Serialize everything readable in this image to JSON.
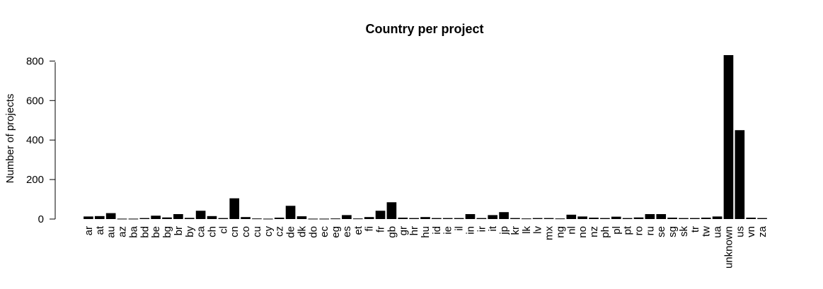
{
  "chart_data": {
    "type": "bar",
    "title": "Country per project",
    "xlabel": "",
    "ylabel": "Number of projects",
    "ylim": [
      0,
      830
    ],
    "yticks": [
      0,
      200,
      400,
      600,
      800
    ],
    "bar_color": "#000000",
    "categories": [
      "ar",
      "at",
      "au",
      "az",
      "ba",
      "bd",
      "be",
      "bg",
      "br",
      "by",
      "ca",
      "ch",
      "cl",
      "cn",
      "co",
      "cu",
      "cy",
      "cz",
      "de",
      "dk",
      "do",
      "ec",
      "eg",
      "es",
      "et",
      "fi",
      "fr",
      "gb",
      "gr",
      "hr",
      "hu",
      "id",
      "ie",
      "il",
      "in",
      "ir",
      "it",
      "jp",
      "kr",
      "lk",
      "lv",
      "mx",
      "ng",
      "nl",
      "no",
      "nz",
      "ph",
      "pl",
      "pt",
      "ro",
      "ru",
      "se",
      "sg",
      "sk",
      "tr",
      "tw",
      "ua",
      "unknown",
      "us",
      "vn",
      "za"
    ],
    "values": [
      13,
      15,
      30,
      2,
      2,
      5,
      17,
      8,
      25,
      6,
      42,
      15,
      5,
      105,
      10,
      3,
      2,
      7,
      67,
      14,
      2,
      2,
      3,
      20,
      3,
      10,
      42,
      85,
      7,
      5,
      10,
      5,
      5,
      5,
      25,
      5,
      20,
      35,
      5,
      3,
      5,
      5,
      3,
      22,
      13,
      7,
      5,
      12,
      5,
      8,
      25,
      25,
      7,
      5,
      5,
      7,
      13,
      830,
      450,
      7,
      5
    ]
  }
}
